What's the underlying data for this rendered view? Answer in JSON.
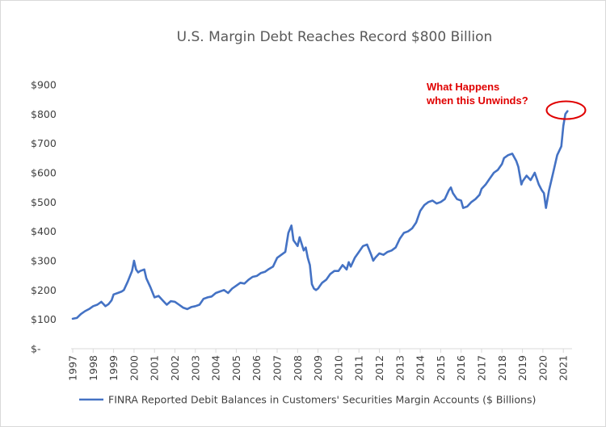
{
  "chart_data": {
    "type": "line",
    "title": "U.S. Margin Debt Reaches Record $800 Billion",
    "xlabel": "",
    "ylabel": "",
    "xlim": [
      1997,
      2021.3
    ],
    "ylim": [
      0,
      900
    ],
    "y_ticks": [
      {
        "value": 0,
        "label": "$-"
      },
      {
        "value": 100,
        "label": "$100"
      },
      {
        "value": 200,
        "label": "$200"
      },
      {
        "value": 300,
        "label": "$300"
      },
      {
        "value": 400,
        "label": "$400"
      },
      {
        "value": 500,
        "label": "$500"
      },
      {
        "value": 600,
        "label": "$600"
      },
      {
        "value": 700,
        "label": "$700"
      },
      {
        "value": 800,
        "label": "$800"
      },
      {
        "value": 900,
        "label": "$900"
      }
    ],
    "x_ticks": [
      "1997",
      "1998",
      "1999",
      "2000",
      "2001",
      "2002",
      "2003",
      "2004",
      "2005",
      "2006",
      "2007",
      "2008",
      "2009",
      "2010",
      "2011",
      "2012",
      "2013",
      "2014",
      "2015",
      "2016",
      "2017",
      "2018",
      "2019",
      "2020",
      "2021"
    ],
    "grid": false,
    "legend_position": "bottom",
    "series": [
      {
        "name": "FINRA Reported Debit Balances in Customers' Securities Margin Accounts ($ Billions)",
        "color": "#4472c4",
        "x": [
          1997.0,
          1997.2,
          1997.4,
          1997.6,
          1997.8,
          1998.0,
          1998.2,
          1998.4,
          1998.6,
          1998.75,
          1998.9,
          1999.0,
          1999.2,
          1999.4,
          1999.5,
          1999.7,
          1999.9,
          2000.0,
          2000.1,
          2000.2,
          2000.3,
          2000.5,
          2000.6,
          2000.8,
          2001.0,
          2001.2,
          2001.4,
          2001.6,
          2001.8,
          2002.0,
          2002.2,
          2002.4,
          2002.6,
          2002.8,
          2003.0,
          2003.2,
          2003.4,
          2003.6,
          2003.8,
          2004.0,
          2004.2,
          2004.4,
          2004.6,
          2004.8,
          2005.0,
          2005.2,
          2005.4,
          2005.6,
          2005.8,
          2006.0,
          2006.2,
          2006.4,
          2006.6,
          2006.8,
          2007.0,
          2007.2,
          2007.4,
          2007.55,
          2007.7,
          2007.8,
          2007.9,
          2008.0,
          2008.1,
          2008.3,
          2008.4,
          2008.5,
          2008.6,
          2008.7,
          2008.8,
          2008.9,
          2009.0,
          2009.1,
          2009.2,
          2009.4,
          2009.6,
          2009.8,
          2010.0,
          2010.2,
          2010.4,
          2010.5,
          2010.6,
          2010.8,
          2011.0,
          2011.2,
          2011.4,
          2011.6,
          2011.7,
          2011.8,
          2012.0,
          2012.2,
          2012.4,
          2012.6,
          2012.8,
          2013.0,
          2013.2,
          2013.4,
          2013.6,
          2013.8,
          2014.0,
          2014.2,
          2014.4,
          2014.6,
          2014.8,
          2015.0,
          2015.2,
          2015.4,
          2015.5,
          2015.6,
          2015.8,
          2016.0,
          2016.1,
          2016.3,
          2016.5,
          2016.7,
          2016.9,
          2017.0,
          2017.2,
          2017.4,
          2017.6,
          2017.8,
          2018.0,
          2018.1,
          2018.3,
          2018.5,
          2018.7,
          2018.8,
          2018.95,
          2019.0,
          2019.2,
          2019.4,
          2019.6,
          2019.8,
          2019.95,
          2020.05,
          2020.15,
          2020.3,
          2020.5,
          2020.7,
          2020.9,
          2021.0,
          2021.1,
          2021.2
        ],
        "values": [
          102,
          105,
          118,
          128,
          135,
          145,
          150,
          160,
          145,
          152,
          165,
          185,
          190,
          195,
          200,
          230,
          265,
          300,
          270,
          260,
          265,
          270,
          240,
          210,
          175,
          180,
          165,
          150,
          162,
          160,
          150,
          140,
          135,
          142,
          145,
          150,
          170,
          175,
          178,
          190,
          195,
          200,
          190,
          205,
          215,
          225,
          222,
          235,
          245,
          248,
          258,
          262,
          272,
          280,
          310,
          320,
          330,
          395,
          420,
          370,
          360,
          350,
          380,
          335,
          345,
          310,
          285,
          220,
          205,
          200,
          205,
          215,
          225,
          235,
          255,
          265,
          265,
          285,
          270,
          295,
          280,
          310,
          330,
          350,
          355,
          320,
          300,
          310,
          325,
          320,
          330,
          335,
          345,
          375,
          395,
          400,
          410,
          430,
          470,
          490,
          500,
          505,
          495,
          500,
          510,
          540,
          550,
          530,
          510,
          505,
          480,
          485,
          500,
          510,
          525,
          545,
          560,
          580,
          600,
          610,
          630,
          650,
          660,
          665,
          640,
          620,
          560,
          570,
          590,
          575,
          600,
          560,
          540,
          530,
          480,
          540,
          600,
          660,
          690,
          760,
          800,
          810
        ]
      }
    ],
    "annotations": [
      {
        "text_lines": [
          "What Happens",
          "when this Unwinds?"
        ],
        "color": "#e00000",
        "points_to": {
          "x": 2021.15,
          "y": 805
        }
      }
    ]
  }
}
